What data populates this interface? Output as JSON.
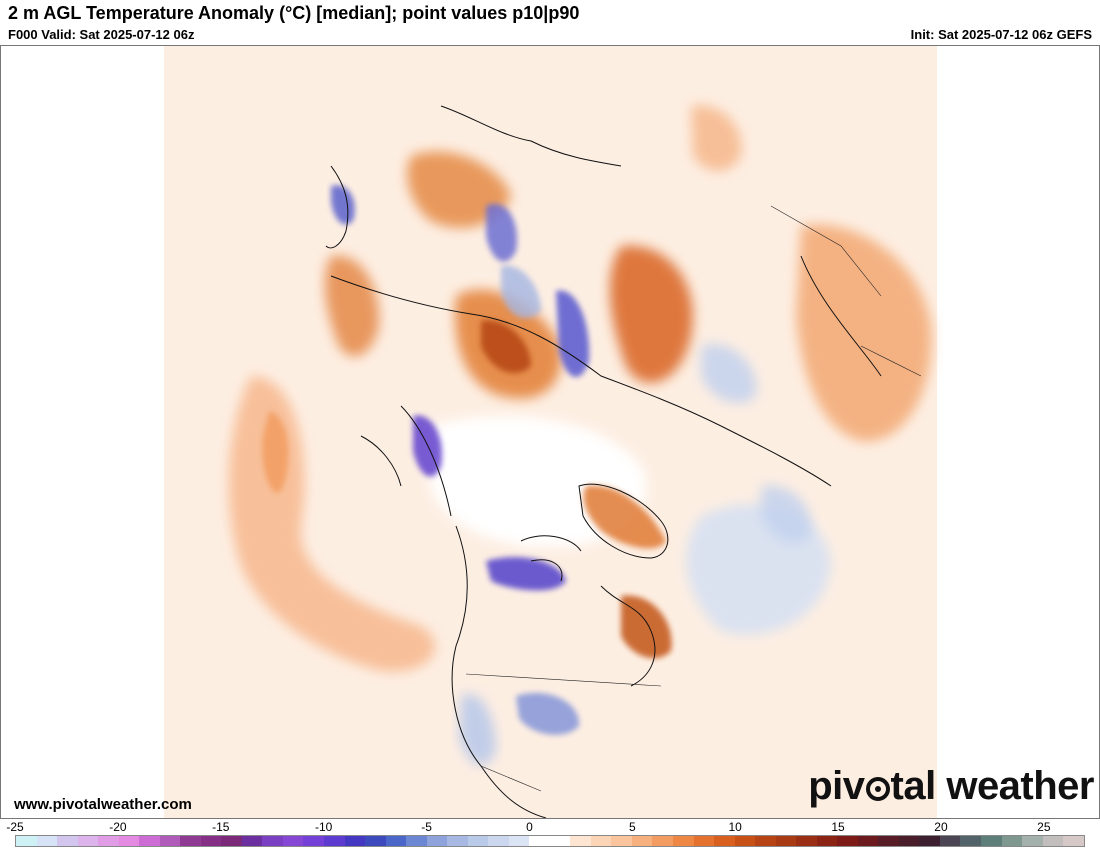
{
  "header": {
    "title": "2 m AGL Temperature Anomaly (°C) [median]; point values p10|p90",
    "valid": "F000 Valid: Sat 2025-07-12 06z",
    "init": "Init: Sat 2025-07-12 06z GEFS"
  },
  "footer": {
    "url": "www.pivotalweather.com",
    "logo_before": "piv",
    "logo_after": "tal weather"
  },
  "colorbar": {
    "labels": [
      "-25",
      "-20",
      "-15",
      "-10",
      "-5",
      "0",
      "5",
      "10",
      "15",
      "20",
      "25"
    ],
    "min": -25,
    "max": 27,
    "colors": [
      "#cef1f6",
      "#d6e2f6",
      "#d2c6ef",
      "#dcb3ea",
      "#e09de6",
      "#e48ae2",
      "#cc6cd4",
      "#b05bb9",
      "#8f3a93",
      "#852f86",
      "#7a2a78",
      "#6c2fa0",
      "#7a3fc2",
      "#8547d4",
      "#7540d8",
      "#5d3bd0",
      "#4438c2",
      "#3c4abe",
      "#4a66c8",
      "#6b86d2",
      "#8ea3dc",
      "#a7b9e2",
      "#b9c9e8",
      "#cad7ef",
      "#dbe4f4",
      "#ffffff",
      "#ffffff",
      "#fde5d2",
      "#fcd4b6",
      "#fac49c",
      "#f6b07e",
      "#f39c62",
      "#ee8744",
      "#e4712e",
      "#d85f1e",
      "#c75016",
      "#b64414",
      "#a83a14",
      "#9a2f15",
      "#8c2416",
      "#7e1b17",
      "#6c1a1e",
      "#571c25",
      "#4a1d2b",
      "#3d2030",
      "#4b4554",
      "#52646a",
      "#5e7e7a",
      "#7e9890",
      "#a4b0ac",
      "#c3bebe",
      "#d6c8c6"
    ]
  },
  "map": {
    "ocean_color": "#ffffff",
    "warm_light": "#fcd9bd",
    "warm_mid": "#f4a46a",
    "warm_strong": "#d65f22",
    "warm_extreme": "#a83a14",
    "cool_light": "#cfdcf0",
    "cool_mid": "#98aee0",
    "cool_strong": "#5d64d0",
    "cool_extreme": "#7a3fc2",
    "border_color": "#111111"
  }
}
